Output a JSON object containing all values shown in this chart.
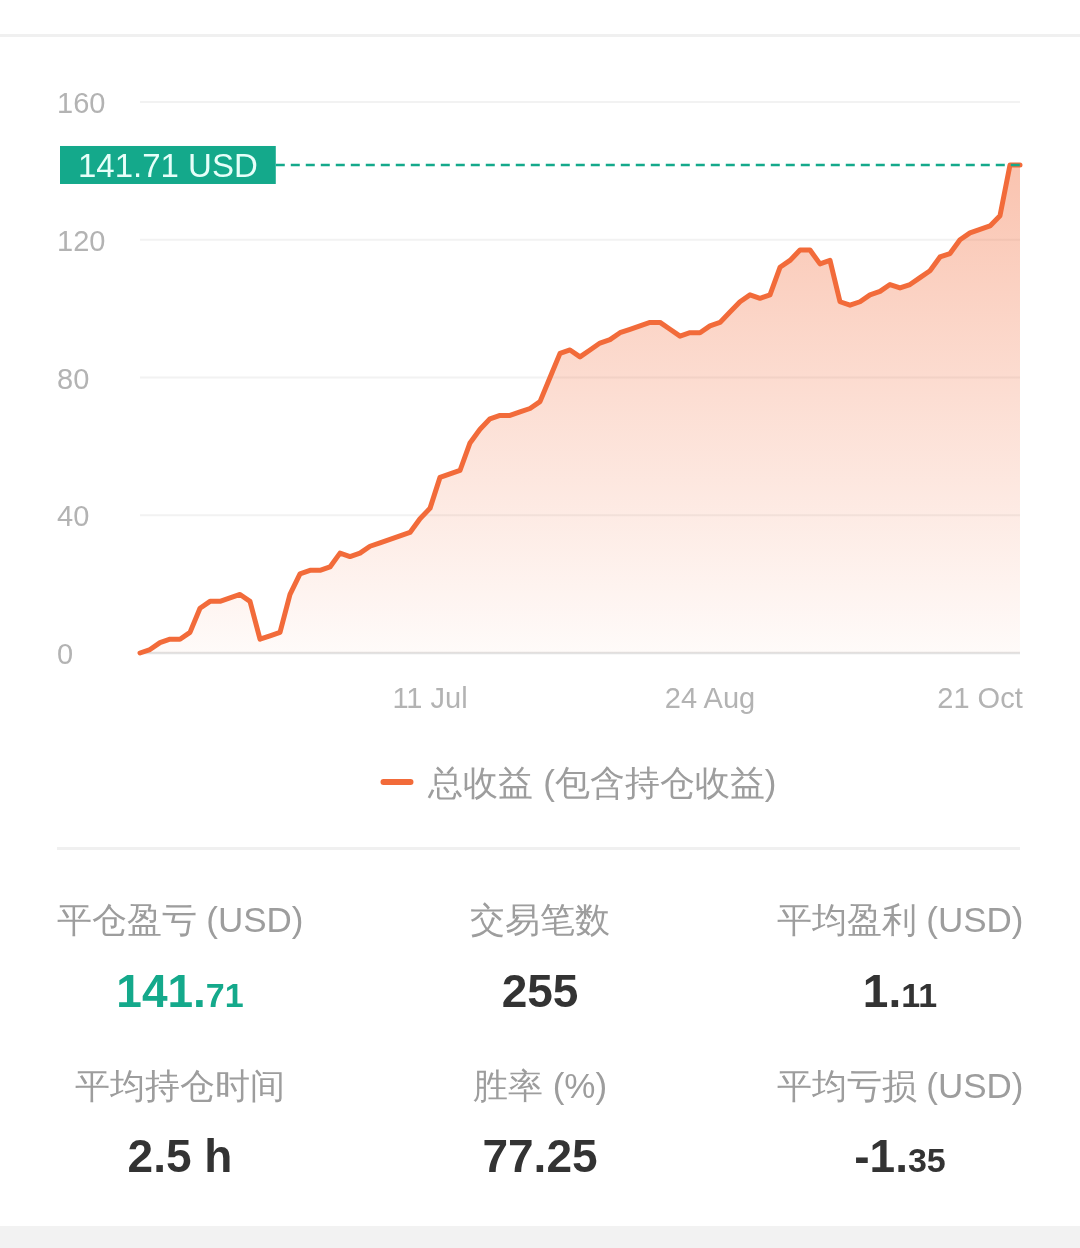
{
  "chart_data": [
    {
      "type": "area",
      "categories": [
        null,
        null,
        null,
        null,
        null,
        null,
        null,
        null,
        null,
        null,
        null,
        null,
        null,
        null,
        null,
        null,
        null,
        null,
        null,
        null,
        null,
        null,
        null,
        null,
        null,
        null,
        null,
        null,
        null,
        "11 Jul",
        null,
        null,
        null,
        null,
        null,
        null,
        null,
        null,
        null,
        null,
        null,
        null,
        null,
        null,
        null,
        null,
        null,
        null,
        null,
        null,
        null,
        null,
        null,
        null,
        null,
        null,
        null,
        "24 Aug",
        null,
        null,
        null,
        null,
        null,
        null,
        null,
        null,
        null,
        null,
        null,
        null,
        null,
        null,
        null,
        null,
        null,
        null,
        null,
        null,
        null,
        null,
        null,
        null,
        null,
        null,
        "21 Oct",
        null,
        null,
        null,
        null
      ],
      "series": [
        {
          "name": "总收益 (包含持仓收益)",
          "color": "#f26b3a",
          "values": [
            0,
            1,
            3,
            4,
            4,
            6,
            13,
            15,
            15,
            16,
            17,
            15,
            4,
            5,
            6,
            17,
            23,
            24,
            24,
            25,
            29,
            28,
            29,
            31,
            32,
            33,
            34,
            35,
            39,
            42,
            51,
            52,
            53,
            61,
            65,
            68,
            69,
            69,
            70,
            71,
            73,
            80,
            87,
            88,
            86,
            88,
            90,
            91,
            93,
            94,
            95,
            96,
            96,
            94,
            92,
            93,
            93,
            95,
            96,
            99,
            102,
            104,
            103,
            104,
            112,
            114,
            117,
            117,
            113,
            114,
            102,
            101,
            102,
            104,
            105,
            107,
            106,
            107,
            109,
            111,
            115,
            116,
            120,
            122,
            123,
            124,
            127,
            141.71,
            141.71
          ]
        }
      ],
      "ylim": [
        0,
        160
      ],
      "yticks": [
        0,
        40,
        80,
        120,
        160
      ],
      "grid": "y",
      "legend": "bottom",
      "ref_lines": [
        {
          "axis": "y",
          "value": 141.71,
          "label": "141.71 USD",
          "color": "#14a98b",
          "line_style": "dashed"
        }
      ]
    },
    {
      "type": "other",
      "annotations": [
        "平仓盈亏 (USD)",
        "交易笔数",
        "平均盈利 (USD)",
        "141.71",
        "255",
        "1.11",
        "平均持仓时间",
        "胜率 (%)",
        "平均亏损 (USD)",
        "2.5 h",
        "77.25",
        "-1.35"
      ]
    }
  ]
}
